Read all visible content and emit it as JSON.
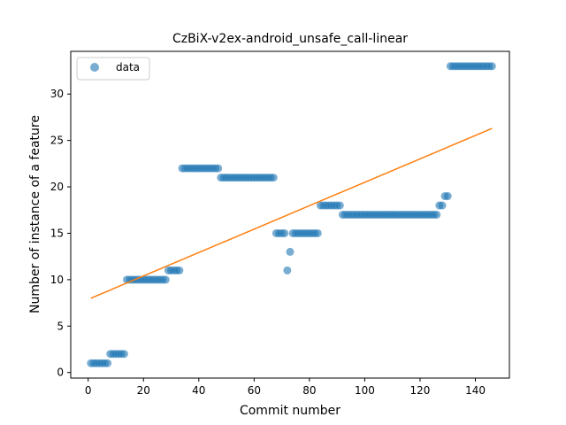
{
  "chart_data": {
    "type": "scatter",
    "title": "CzBiX-v2ex-android_unsafe_call-linear",
    "xlabel": "Commit number",
    "ylabel": "Number of instance of a feature",
    "xlim": [
      -6.3,
      152.3
    ],
    "ylim": [
      -0.6,
      34.6
    ],
    "xticks": [
      0,
      20,
      40,
      60,
      80,
      100,
      120,
      140
    ],
    "yticks": [
      0,
      5,
      10,
      15,
      20,
      25,
      30
    ],
    "legend": {
      "position": "upper-left",
      "entries": [
        "data"
      ]
    },
    "colors": {
      "points": "#1f77b4",
      "fit": "#ff7f0e"
    },
    "grid": false,
    "series": [
      {
        "name": "data",
        "kind": "scatter",
        "segments": [
          {
            "from": 1,
            "to": 7,
            "y": 1
          },
          {
            "from": 8,
            "to": 13,
            "y": 2
          },
          {
            "from": 14,
            "to": 28,
            "y": 10
          },
          {
            "from": 29,
            "to": 33,
            "y": 11
          },
          {
            "from": 34,
            "to": 47,
            "y": 22
          },
          {
            "from": 48,
            "to": 67,
            "y": 21
          },
          {
            "from": 68,
            "to": 71,
            "y": 15
          },
          {
            "from": 72,
            "to": 72,
            "y": 11
          },
          {
            "from": 73,
            "to": 73,
            "y": 13
          },
          {
            "from": 74,
            "to": 83,
            "y": 15
          },
          {
            "from": 84,
            "to": 91,
            "y": 18
          },
          {
            "from": 92,
            "to": 126,
            "y": 17
          },
          {
            "from": 127,
            "to": 128,
            "y": 18
          },
          {
            "from": 129,
            "to": 130,
            "y": 19
          },
          {
            "from": 131,
            "to": 146,
            "y": 33
          }
        ]
      },
      {
        "name": "",
        "kind": "line",
        "points": [
          [
            1,
            8.0
          ],
          [
            146,
            26.3
          ]
        ]
      }
    ]
  }
}
